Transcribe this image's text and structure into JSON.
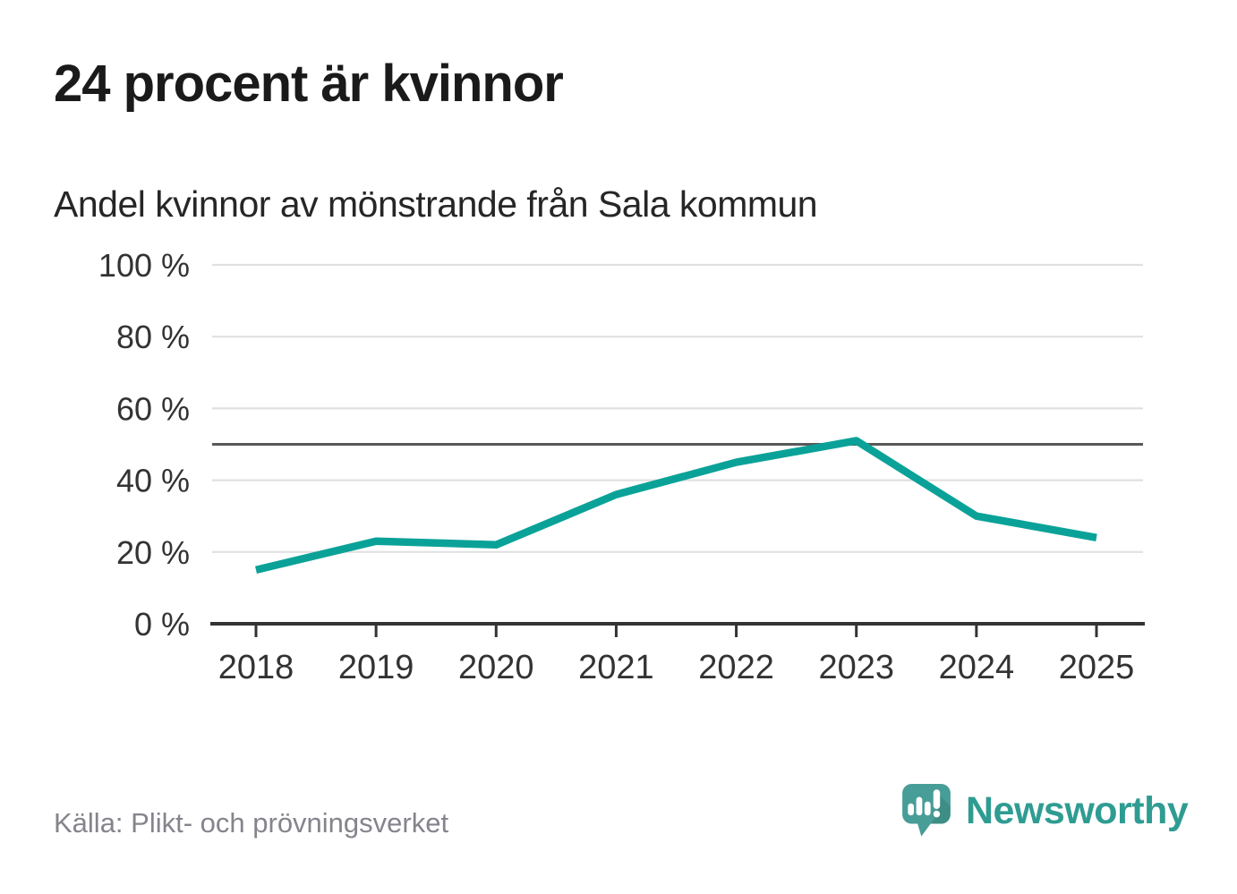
{
  "chart_data": {
    "type": "line",
    "title": "24 procent är kvinnor",
    "subtitle": "Andel kvinnor av mönstrande från Sala kommun",
    "categories": [
      "2018",
      "2019",
      "2020",
      "2021",
      "2022",
      "2023",
      "2024",
      "2025"
    ],
    "series": [
      {
        "name": "Andel kvinnor av mönstrande",
        "values": [
          15,
          23,
          22,
          36,
          45,
          51,
          30,
          24
        ]
      }
    ],
    "unit": "%",
    "ylim": [
      0,
      100
    ],
    "yticks": [
      0,
      20,
      40,
      60,
      80,
      100
    ],
    "ytick_suffix": " %",
    "reference_line": 50,
    "grid": true,
    "legend": "none",
    "colors": {
      "line": "#0aa298",
      "reference": "#58585a",
      "grid": "#e0e0e0",
      "axis": "#333333",
      "tick_label": "#333333"
    }
  },
  "footer": {
    "source": "Källa: Plikt- och prövningsverket",
    "brand": "Newsworthy",
    "brand_color": "#2f9c92"
  }
}
